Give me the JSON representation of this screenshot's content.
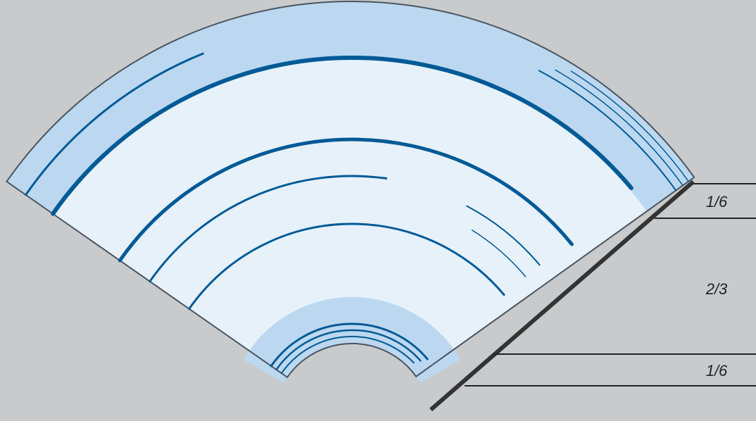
{
  "segments": [
    {
      "label": "1/6"
    },
    {
      "label": "2/3"
    },
    {
      "label": "1/6"
    }
  ]
}
